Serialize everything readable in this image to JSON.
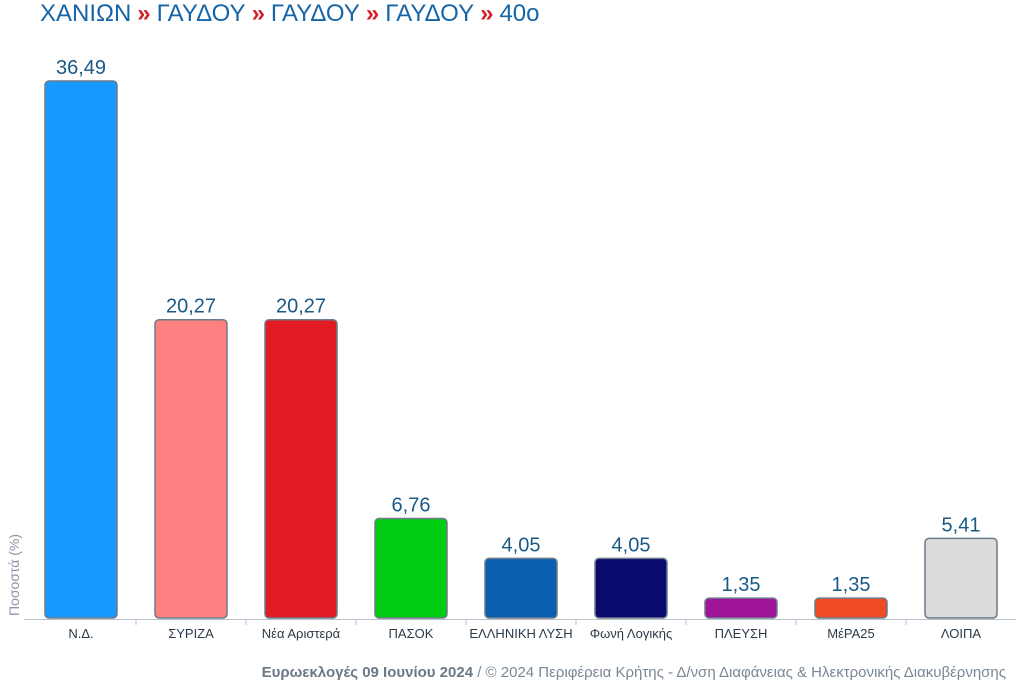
{
  "breadcrumb": {
    "items": [
      "ΧΑΝΙΩΝ",
      "ΓΑΥΔΟΥ",
      "ΓΑΥΔΟΥ",
      "ΓΑΥΔΟΥ",
      "40ο"
    ],
    "separator": "»",
    "text_color": "#1565a8",
    "separator_color": "#d3202a"
  },
  "footer": {
    "bold_text": "Ευρωεκλογές 09 Ιουνίου 2024",
    "rest_text": " / © 2024 Περιφέρεια Κρήτης - Δ/νση Διαφάνειας & Ηλεκτρονικής Διακυβέρνησης"
  },
  "chart_data": {
    "type": "bar",
    "ylabel": "Ποσοστά (%)",
    "xlabel": "",
    "ylim": [
      0,
      40
    ],
    "grid": false,
    "categories": [
      "Ν.Δ.",
      "ΣΥΡΙΖΑ",
      "Νέα Αριστερά",
      "ΠΑΣΟΚ",
      "ΕΛΛΗΝΙΚΗ ΛΥΣΗ",
      "Φωνή Λογικής",
      "ΠΛΕΥΣΗ",
      "ΜέΡΑ25",
      "ΛΟΙΠΑ"
    ],
    "values": [
      36.49,
      20.27,
      20.27,
      6.76,
      4.05,
      4.05,
      1.35,
      1.35,
      5.41
    ],
    "value_labels": [
      "36,49",
      "20,27",
      "20,27",
      "6,76",
      "4,05",
      "4,05",
      "1,35",
      "1,35",
      "5,41"
    ],
    "colors": [
      "#1899ff",
      "#ff8080",
      "#e01b24",
      "#00cc11",
      "#0a5fb0",
      "#0a0a6e",
      "#a0149a",
      "#f04a22",
      "#dcdcdc"
    ],
    "bar_outline": "#6d7a8a",
    "value_label_color": "#1a5a86"
  }
}
